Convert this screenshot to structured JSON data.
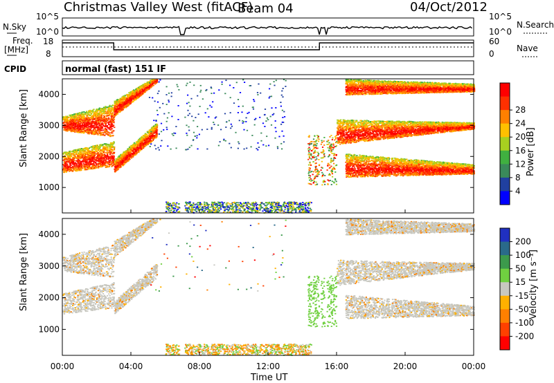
{
  "header": {
    "title": "Christmas Valley West (fitACF)",
    "beam": "Beam 04",
    "date": "04/Oct/2012",
    "nsky_label": "N.Sky",
    "nsky_ticks": [
      "10^5",
      "10^0"
    ],
    "nsearch_label": "N.Search",
    "nsearch_ticks": [
      "10^5",
      "10^0"
    ],
    "freq_label": "Freq.",
    "freq_unit": "[MHz]",
    "freq_ticks": [
      "18",
      "8"
    ],
    "nave_label": "Nave",
    "nave_ticks": [
      "60",
      "0"
    ],
    "cpid_label": "CPID",
    "cpid_value": "normal (fast) 151 IF"
  },
  "chart_data": [
    {
      "type": "heatmap",
      "name": "Power",
      "ylabel": "Slant Range [km]",
      "xlabel": "Time UT",
      "y_ticks": [
        "1000",
        "2000",
        "3000",
        "4000"
      ],
      "ylim": [
        180,
        4500
      ],
      "x_ticks": [
        "00:00",
        "04:00",
        "08:00",
        "12:00",
        "16:00",
        "20:00",
        "00:00"
      ],
      "xlim_hours": [
        0,
        24
      ],
      "colorbar": {
        "label": "Power [dB]",
        "ticks": [
          "4",
          "8",
          "12",
          "16",
          "20",
          "24",
          "28"
        ],
        "colors": [
          "#0000ff",
          "#2040a0",
          "#3a8a5a",
          "#40b040",
          "#a8d020",
          "#ffc000",
          "#ff8000",
          "#ff3000",
          "#ff0000"
        ]
      }
    },
    {
      "type": "heatmap",
      "name": "Velocity",
      "ylabel": "Slant Range [km]",
      "xlabel": "Time UT",
      "y_ticks": [
        "1000",
        "2000",
        "3000",
        "4000"
      ],
      "ylim": [
        180,
        4500
      ],
      "x_ticks": [
        "00:00",
        "04:00",
        "08:00",
        "12:00",
        "16:00",
        "20:00",
        "00:00"
      ],
      "xlim_hours": [
        0,
        24
      ],
      "colorbar": {
        "label": "Velocity [m s⁻¹]",
        "ticks": [
          "200",
          "100",
          "50",
          "15",
          "-15",
          "-50",
          "-100",
          "-200"
        ],
        "colors": [
          "#2030c0",
          "#2a6a8a",
          "#3c9a4c",
          "#70d040",
          "#c8c8c0",
          "#ffb000",
          "#ff8000",
          "#ff4000",
          "#ff0000"
        ]
      }
    }
  ],
  "features": {
    "power_bands": [
      {
        "t": [
          0,
          3
        ],
        "r0": [
          2850,
          2650
        ],
        "r1": [
          3300,
          3700
        ]
      },
      {
        "t": [
          0,
          3
        ],
        "r0": [
          1500,
          1700
        ],
        "r1": [
          2150,
          2500
        ]
      },
      {
        "t": [
          3,
          5.5
        ],
        "r0": [
          3300,
          4400
        ],
        "r1": [
          3800,
          4600
        ]
      },
      {
        "t": [
          3,
          5.5
        ],
        "r0": [
          1500,
          2650
        ],
        "r1": [
          1900,
          3100
        ]
      },
      {
        "t": [
          16.5,
          24
        ],
        "r0": [
          1350,
          1450
        ],
        "r1": [
          2100,
          1750
        ]
      },
      {
        "t": [
          16,
          24
        ],
        "r0": [
          2400,
          2900
        ],
        "r1": [
          3200,
          3100
        ]
      },
      {
        "t": [
          16.5,
          24
        ],
        "r0": [
          4000,
          4100
        ],
        "r1": [
          4500,
          4350
        ]
      }
    ],
    "data_gaps_hours": [
      [
        6.8,
        7.1
      ],
      [
        14.95,
        15.05
      ],
      [
        15.3,
        15.4
      ]
    ]
  }
}
